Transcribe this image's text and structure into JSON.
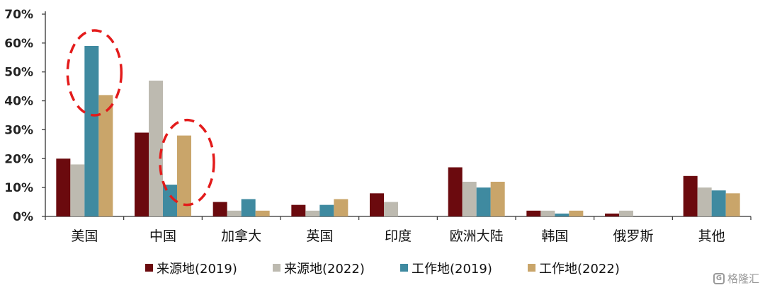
{
  "chart_data": {
    "type": "bar",
    "categories": [
      "美国",
      "中国",
      "加拿大",
      "英国",
      "印度",
      "欧洲大陆",
      "韩国",
      "俄罗斯",
      "其他"
    ],
    "series": [
      {
        "name": "来源地(2019)",
        "color": "#6b0a0e",
        "values": [
          20,
          29,
          5,
          4,
          8,
          17,
          2,
          1,
          14
        ]
      },
      {
        "name": "来源地(2022)",
        "color": "#bdbab0",
        "values": [
          18,
          47,
          2,
          2,
          5,
          12,
          2,
          2,
          10
        ]
      },
      {
        "name": "工作地(2019)",
        "color": "#3f8aa0",
        "values": [
          59,
          11,
          6,
          4,
          0,
          10,
          1,
          0,
          9
        ]
      },
      {
        "name": "工作地(2022)",
        "color": "#c9a56a",
        "values": [
          42,
          28,
          2,
          6,
          0,
          12,
          2,
          0,
          8
        ]
      }
    ],
    "ylim": [
      0,
      70
    ],
    "yticks": [
      "0%",
      "10%",
      "20%",
      "30%",
      "40%",
      "50%",
      "60%",
      "70%"
    ],
    "legend_position": "bottom",
    "annotations": [
      {
        "type": "dashed-ellipse",
        "color": "#e31b1b",
        "around": "美国 工作地(2019)"
      },
      {
        "type": "dashed-ellipse",
        "color": "#e31b1b",
        "around": "中国 工作地(2022)"
      }
    ]
  },
  "watermark": {
    "logo": "G",
    "text": "格隆汇"
  }
}
